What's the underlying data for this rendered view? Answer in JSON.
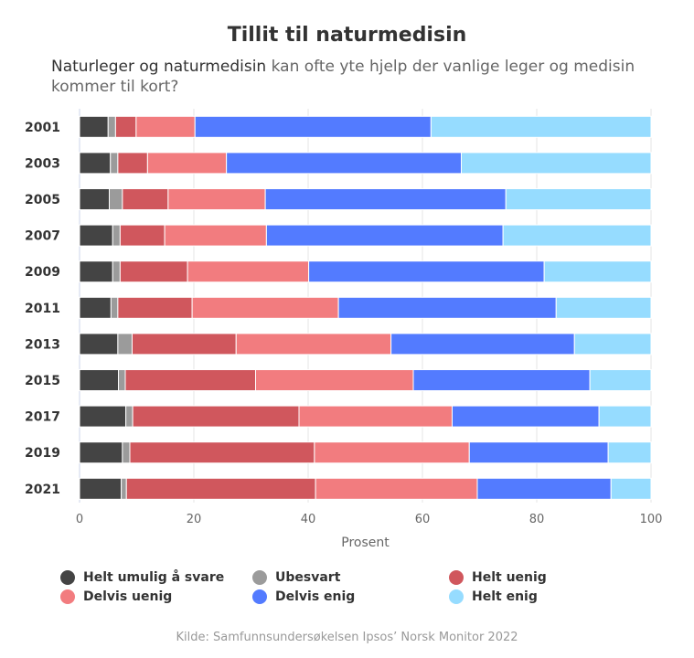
{
  "chart_data": {
    "type": "bar",
    "orientation": "horizontal",
    "stacked": true,
    "title": "Tillit til naturmedisin",
    "subtitle_emphasis": "Naturleger og naturmedisin",
    "subtitle_rest": " kan ofte yte hjelp der vanlige leger og medisin kommer til kort?",
    "xlabel": "Prosent",
    "xlim": [
      0,
      100
    ],
    "xticks": [
      0,
      20,
      40,
      60,
      80,
      100
    ],
    "grid": true,
    "legend_placement": "bottom",
    "categories": [
      "2001",
      "2003",
      "2005",
      "2007",
      "2009",
      "2011",
      "2013",
      "2015",
      "2017",
      "2019",
      "2021"
    ],
    "series": [
      {
        "name": "Helt umulig å svare",
        "color": "#444444",
        "values": [
          5.0,
          5.4,
          5.2,
          5.8,
          5.8,
          5.5,
          6.7,
          6.8,
          8.1,
          7.5,
          7.3
        ]
      },
      {
        "name": "Ubesvart",
        "color": "#9b9b9b",
        "values": [
          1.3,
          1.3,
          2.3,
          1.3,
          1.3,
          1.2,
          2.5,
          1.2,
          1.2,
          1.3,
          0.9
        ]
      },
      {
        "name": "Helt uenig",
        "color": "#d0575d",
        "values": [
          3.6,
          5.2,
          8.0,
          7.8,
          11.8,
          13.0,
          18.2,
          22.8,
          29.1,
          32.3,
          33.1
        ]
      },
      {
        "name": "Delvis uenig",
        "color": "#f27c7f",
        "values": [
          10.3,
          13.8,
          17.0,
          17.8,
          21.2,
          25.6,
          27.1,
          27.6,
          26.8,
          27.1,
          28.3
        ]
      },
      {
        "name": "Delvis enig",
        "color": "#537bff",
        "values": [
          41.3,
          41.1,
          42.1,
          41.4,
          41.2,
          38.1,
          32.1,
          30.9,
          25.7,
          24.3,
          23.4
        ]
      },
      {
        "name": "Helt enig",
        "color": "#96dcff",
        "values": [
          38.5,
          33.2,
          25.4,
          25.9,
          18.7,
          16.6,
          13.4,
          10.7,
          9.1,
          7.5,
          7.0
        ]
      }
    ]
  },
  "source": "Kilde: Samfunnsundersøkelsen Ipsos’ Norsk Monitor 2022"
}
